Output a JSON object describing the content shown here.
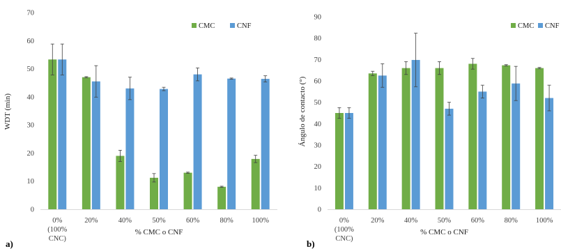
{
  "colors": {
    "CMC": "#70ad47",
    "CNF": "#5b9bd5"
  },
  "chart_data": [
    {
      "type": "bar",
      "panel_label": "a)",
      "xlabel": "% CMC o CNF",
      "ylabel": "WDT (min)",
      "ylim": [
        0,
        70
      ],
      "ytick_step": 10,
      "yticks": [
        "0",
        "10",
        "20",
        "30",
        "40",
        "50",
        "60",
        "70"
      ],
      "legend_position": "top-right",
      "categories": [
        [
          "0%",
          "(100%",
          "CNC)"
        ],
        [
          "20%"
        ],
        [
          "40%"
        ],
        [
          "50%"
        ],
        [
          "60%"
        ],
        [
          "80%"
        ],
        [
          "100%"
        ]
      ],
      "series": [
        {
          "name": "CMC",
          "values": [
            53.3,
            47.0,
            19.0,
            11.2,
            13.0,
            8.0,
            17.9
          ],
          "errors": [
            5.5,
            0.2,
            2.0,
            1.5,
            0.2,
            0.2,
            1.3
          ]
        },
        {
          "name": "CNF",
          "values": [
            53.3,
            45.5,
            43.0,
            42.8,
            48.0,
            46.5,
            46.4
          ],
          "errors": [
            5.5,
            5.6,
            4.0,
            0.6,
            2.3,
            0.2,
            1.1
          ]
        }
      ]
    },
    {
      "type": "bar",
      "panel_label": "b)",
      "xlabel": "% CMC o CNF",
      "ylabel": "Ángulo de contacto (°)",
      "ylim": [
        0,
        90
      ],
      "ytick_step": 10,
      "yticks": [
        "0",
        "10",
        "20",
        "30",
        "40",
        "50",
        "60",
        "70",
        "80",
        "90"
      ],
      "legend_position": "top-right",
      "categories": [
        [
          "0%",
          "(100%",
          "CNC)"
        ],
        [
          "20%"
        ],
        [
          "40%"
        ],
        [
          "50%"
        ],
        [
          "60%"
        ],
        [
          "80%"
        ],
        [
          "100%"
        ]
      ],
      "series": [
        {
          "name": "CMC",
          "values": [
            45.0,
            63.5,
            66.0,
            66.0,
            68.0,
            67.3,
            66.0
          ],
          "errors": [
            2.5,
            1.0,
            3.0,
            3.0,
            2.5,
            0.3,
            0.3
          ]
        },
        {
          "name": "CNF",
          "values": [
            45.0,
            62.5,
            69.8,
            47.0,
            55.0,
            58.8,
            52.0
          ],
          "errors": [
            2.5,
            5.5,
            12.5,
            3.0,
            3.0,
            8.0,
            6.0
          ]
        }
      ]
    }
  ]
}
